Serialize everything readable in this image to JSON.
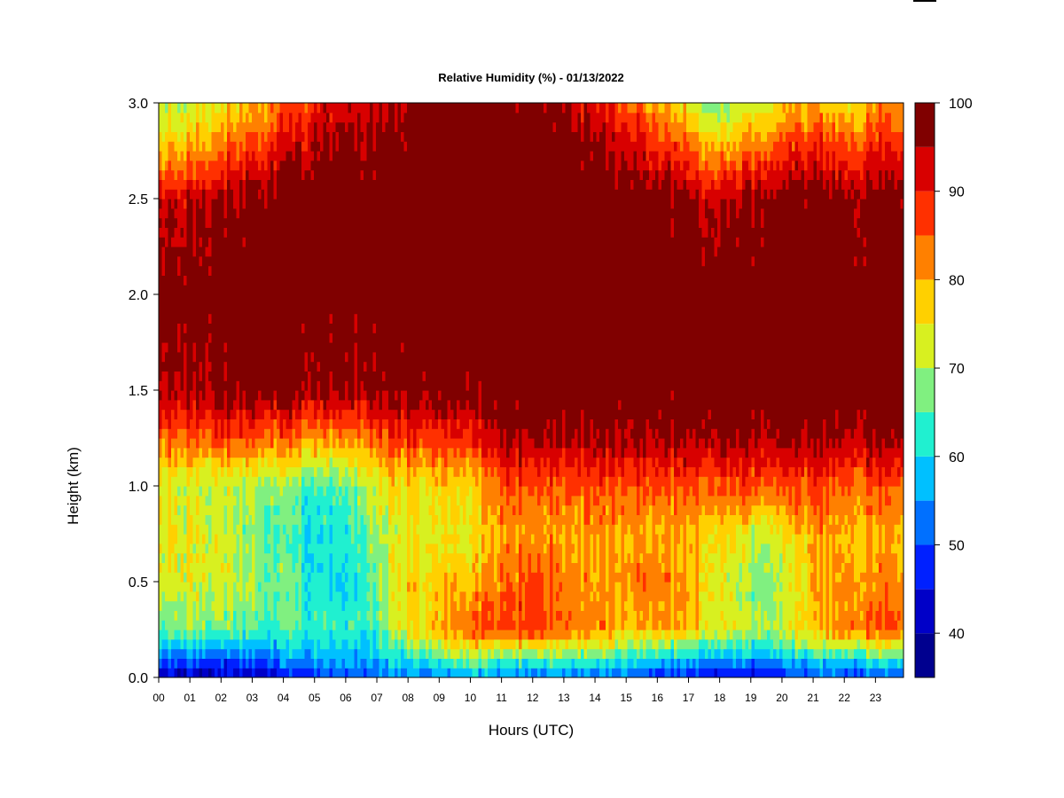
{
  "chart_data": {
    "type": "heatmap",
    "title": "Relative Humidity (%) - 01/13/2022",
    "xlabel": "Hours (UTC)",
    "ylabel": "Height (km)",
    "xlim": [
      0,
      23.9
    ],
    "ylim": [
      0.0,
      3.0
    ],
    "x_ticks": [
      0,
      1,
      2,
      3,
      4,
      5,
      6,
      7,
      8,
      9,
      10,
      11,
      12,
      13,
      14,
      15,
      16,
      17,
      18,
      19,
      20,
      21,
      22,
      23
    ],
    "x_tick_labels": [
      "00",
      "01",
      "02",
      "03",
      "04",
      "05",
      "06",
      "07",
      "08",
      "09",
      "10",
      "11",
      "12",
      "13",
      "14",
      "15",
      "16",
      "17",
      "18",
      "19",
      "20",
      "21",
      "22",
      "23"
    ],
    "y_ticks": [
      0.0,
      0.5,
      1.0,
      1.5,
      2.0,
      2.5,
      3.0
    ],
    "y_tick_labels": [
      "0.0",
      "0.5",
      "1.0",
      "1.5",
      "2.0",
      "2.5",
      "3.0"
    ],
    "colorbar": {
      "levels": [
        35,
        40,
        45,
        50,
        55,
        60,
        65,
        70,
        75,
        80,
        85,
        90,
        95,
        100
      ],
      "colors": [
        "#00008f",
        "#0000c8",
        "#0020ff",
        "#0070ff",
        "#00c0ff",
        "#20f0d0",
        "#80f080",
        "#d8f020",
        "#ffd000",
        "#ff8000",
        "#ff3000",
        "#d80000",
        "#800000"
      ],
      "tick_values": [
        40,
        50,
        60,
        70,
        80,
        90,
        100
      ],
      "tick_labels": [
        "40",
        "50",
        "60",
        "70",
        "80",
        "90",
        "100"
      ]
    },
    "hours": [
      0,
      1,
      2,
      3,
      4,
      5,
      6,
      7,
      8,
      9,
      10,
      11,
      12,
      13,
      14,
      15,
      16,
      17,
      18,
      19,
      20,
      21,
      22,
      23
    ],
    "heights_km": [
      0.0,
      0.1,
      0.25,
      0.5,
      0.75,
      1.0,
      1.25,
      1.5,
      2.0,
      2.5,
      2.75,
      3.0
    ],
    "values": [
      [
        42,
        52,
        65,
        72,
        75,
        74,
        85,
        95,
        100,
        93,
        78,
        70
      ],
      [
        40,
        52,
        68,
        74,
        74,
        72,
        85,
        96,
        100,
        94,
        80,
        72
      ],
      [
        40,
        50,
        66,
        72,
        72,
        70,
        86,
        97,
        100,
        96,
        84,
        74
      ],
      [
        42,
        52,
        65,
        70,
        68,
        70,
        86,
        98,
        100,
        98,
        88,
        78
      ],
      [
        44,
        54,
        64,
        66,
        64,
        68,
        84,
        98,
        100,
        99,
        92,
        84
      ],
      [
        48,
        56,
        64,
        62,
        60,
        64,
        82,
        96,
        100,
        100,
        96,
        90
      ],
      [
        50,
        56,
        62,
        60,
        62,
        66,
        82,
        96,
        100,
        100,
        97,
        92
      ],
      [
        52,
        58,
        66,
        68,
        70,
        74,
        86,
        98,
        100,
        100,
        98,
        94
      ],
      [
        52,
        62,
        76,
        76,
        74,
        76,
        88,
        99,
        100,
        100,
        99,
        96
      ],
      [
        52,
        64,
        78,
        78,
        74,
        76,
        88,
        99,
        100,
        100,
        100,
        100
      ],
      [
        56,
        70,
        86,
        78,
        74,
        76,
        88,
        98,
        100,
        100,
        100,
        100
      ],
      [
        54,
        64,
        86,
        84,
        80,
        86,
        96,
        100,
        100,
        100,
        100,
        98
      ],
      [
        52,
        66,
        90,
        86,
        82,
        86,
        96,
        100,
        100,
        100,
        100,
        99
      ],
      [
        54,
        66,
        84,
        84,
        80,
        86,
        96,
        100,
        100,
        100,
        100,
        96
      ],
      [
        50,
        64,
        82,
        80,
        80,
        86,
        96,
        100,
        100,
        100,
        96,
        90
      ],
      [
        52,
        62,
        78,
        82,
        80,
        86,
        96,
        100,
        100,
        100,
        94,
        86
      ],
      [
        48,
        60,
        80,
        84,
        80,
        86,
        96,
        100,
        100,
        99,
        90,
        80
      ],
      [
        46,
        58,
        78,
        80,
        80,
        86,
        96,
        100,
        100,
        97,
        86,
        74
      ],
      [
        44,
        56,
        74,
        74,
        76,
        86,
        96,
        100,
        100,
        94,
        80,
        66
      ],
      [
        44,
        56,
        70,
        68,
        72,
        86,
        96,
        100,
        100,
        96,
        84,
        72
      ],
      [
        46,
        58,
        72,
        70,
        74,
        86,
        96,
        100,
        100,
        98,
        88,
        76
      ],
      [
        48,
        60,
        78,
        78,
        80,
        86,
        96,
        100,
        100,
        99,
        90,
        78
      ],
      [
        50,
        62,
        84,
        82,
        80,
        86,
        96,
        100,
        100,
        98,
        88,
        76
      ],
      [
        50,
        64,
        86,
        82,
        80,
        86,
        96,
        100,
        100,
        98,
        90,
        80
      ]
    ]
  }
}
